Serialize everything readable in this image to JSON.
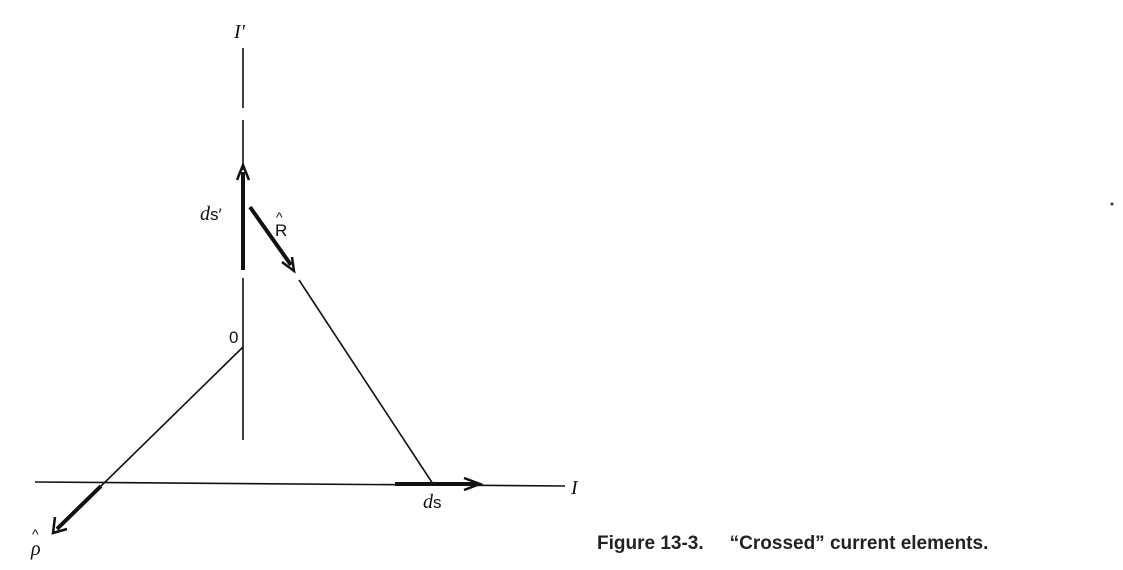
{
  "labels": {
    "wire_vertical_current": "I′",
    "wire_horizontal_current": "I",
    "element_primed": "ds′",
    "element_primed_var": "d",
    "element_primed_vec": "s′",
    "element": "ds",
    "element_var": "d",
    "element_vec": "s",
    "unit_vector_R": "R",
    "unit_vector_rho": "ρ",
    "origin": "0",
    "hat": "^"
  },
  "caption": {
    "figure_number": "Figure 13-3.",
    "text": "“Crossed” current elements."
  }
}
